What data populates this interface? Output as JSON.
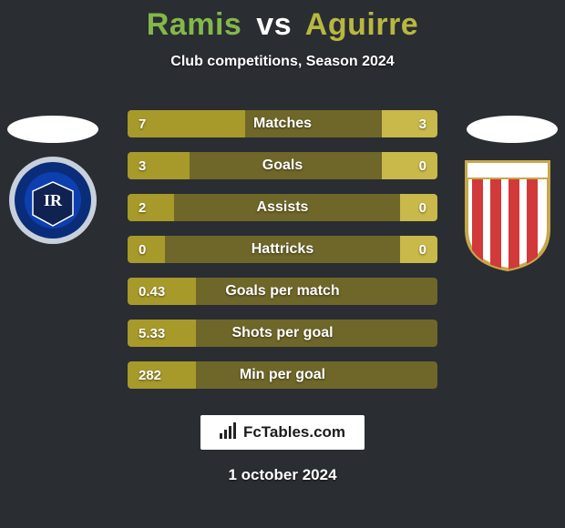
{
  "background_color": "#2a2d32",
  "title": {
    "left": "Ramis",
    "vs": "vs",
    "right": "Aguirre",
    "left_color": "#82b84a",
    "vs_color": "#ffffff",
    "right_color": "#b7b83f",
    "fontsize": 34
  },
  "subtitle": "Club competitions, Season 2024",
  "accent_left": "#a79a2b",
  "accent_right": "#c9b84a",
  "row_bg": "#6f6629",
  "rows": [
    {
      "left": "7",
      "right": "3",
      "label": "Matches",
      "left_w": 0.38,
      "right_w": 0.18
    },
    {
      "left": "3",
      "right": "0",
      "label": "Goals",
      "left_w": 0.2,
      "right_w": 0.18
    },
    {
      "left": "2",
      "right": "0",
      "label": "Assists",
      "left_w": 0.15,
      "right_w": 0.12
    },
    {
      "left": "0",
      "right": "0",
      "label": "Hattricks",
      "left_w": 0.12,
      "right_w": 0.12
    },
    {
      "left": "0.43",
      "right": "",
      "label": "Goals per match",
      "left_w": 0.22,
      "right_w": 0.0
    },
    {
      "left": "5.33",
      "right": "",
      "label": "Shots per goal",
      "left_w": 0.22,
      "right_w": 0.0
    },
    {
      "left": "282",
      "right": "",
      "label": "Min per goal",
      "left_w": 0.22,
      "right_w": 0.0
    }
  ],
  "logo_text": "FcTables.com",
  "date": "1 october 2024",
  "badge_left": {
    "outer": "#c8d0dc",
    "ring": "#0a2d7a",
    "inner_text_color": "#ffffff"
  },
  "badge_right": {
    "border": "#c7a84a",
    "stripe": "#d23a3a",
    "bg": "#ffffff"
  }
}
